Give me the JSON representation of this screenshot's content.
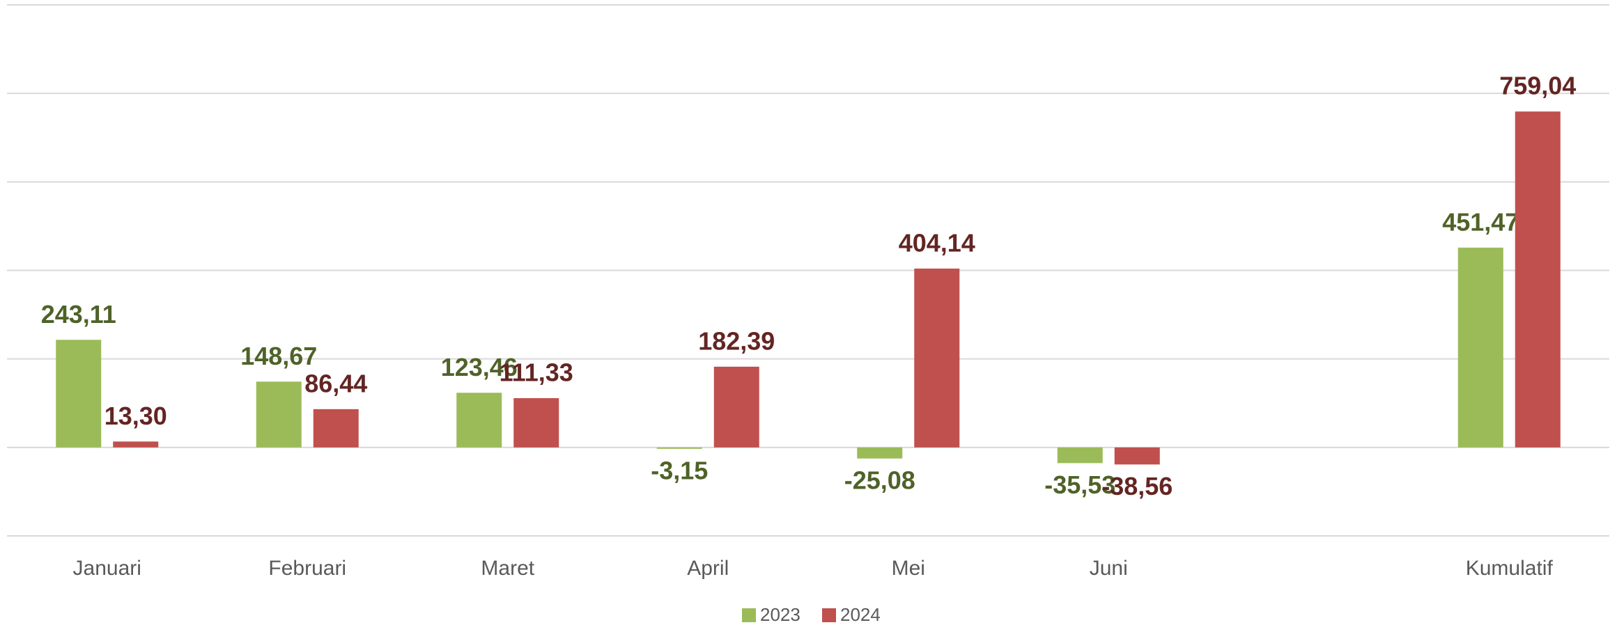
{
  "chart_data": {
    "type": "bar",
    "categories": [
      "Januari",
      "Februari",
      "Maret",
      "April",
      "Mei",
      "Juni",
      null,
      "Kumulatif"
    ],
    "series": [
      {
        "name": "2023",
        "color": "#9bbb59",
        "label_color": "#4f6228",
        "values": [
          243.11,
          148.67,
          123.46,
          -3.15,
          -25.08,
          -35.53,
          null,
          451.47
        ],
        "value_labels": [
          "243,11",
          "148,67",
          "123,46",
          "-3,15",
          "-25,08",
          "-35,53",
          null,
          "451,47"
        ]
      },
      {
        "name": "2024",
        "color": "#c0504d",
        "label_color": "#632523",
        "values": [
          13.3,
          86.44,
          111.33,
          182.39,
          404.14,
          -38.56,
          null,
          759.04
        ],
        "value_labels": [
          "13,30",
          "86,44",
          "111,33",
          "182,39",
          "404,14",
          "-38,56",
          null,
          "759,04"
        ]
      }
    ],
    "ylim": [
      -200,
      1000
    ],
    "yticks": [
      -200,
      0,
      200,
      400,
      600,
      800,
      1000
    ],
    "grid": true,
    "legend": "bottom"
  }
}
